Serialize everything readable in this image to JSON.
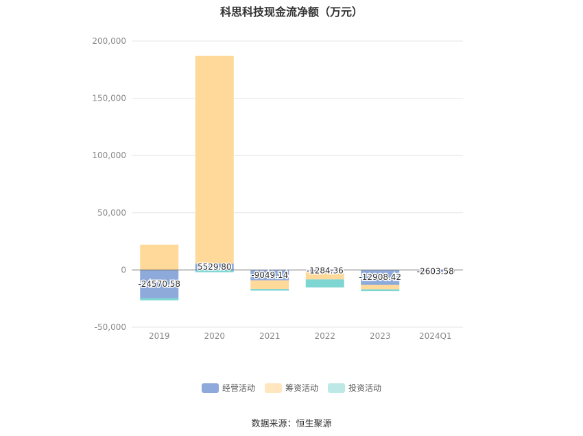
{
  "chart_data": {
    "type": "bar",
    "stacked": true,
    "title": "科思科技现金流净额（万元）",
    "categories": [
      "2019",
      "2020",
      "2021",
      "2022",
      "2023",
      "2024Q1"
    ],
    "series": [
      {
        "name": "经营活动",
        "color": "#8eaadb",
        "values": [
          -24570.58,
          5529.8,
          -9049.14,
          -1284.36,
          -12908.42,
          -2603.58
        ]
      },
      {
        "name": "筹资活动",
        "color": "#ffd99a",
        "values": [
          22000,
          181500,
          -7500,
          -7000,
          -4000,
          0
        ]
      },
      {
        "name": "投资活动",
        "color": "#7ed6d3",
        "values": [
          -2000,
          -2000,
          -1500,
          -7000,
          -1500,
          0
        ]
      }
    ],
    "data_labels": [
      "-24570.58",
      "5529.80",
      "-9049.14",
      "-1284.36",
      "-12908.42",
      "-2603.58"
    ],
    "y_ticks": [
      "200,000",
      "150,000",
      "100,000",
      "50,000",
      "0",
      "-50,000"
    ],
    "ylim": [
      -50000,
      200000
    ],
    "grid": true,
    "legend_position": "bottom"
  },
  "legend_items": [
    {
      "label": "经营活动",
      "color": "#8eaadb"
    },
    {
      "label": "筹资活动",
      "color": "#ffe6bf"
    },
    {
      "label": "投资活动",
      "color": "#bde8e6"
    }
  ],
  "source": "数据来源：恒生聚源"
}
